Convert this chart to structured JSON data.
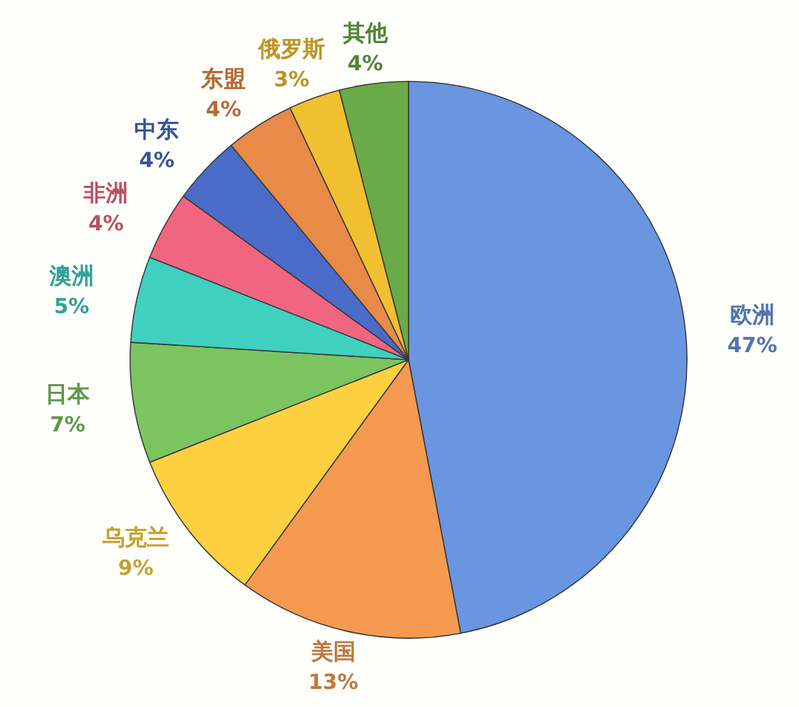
{
  "chart_data": {
    "type": "pie",
    "categories": [
      "欧洲",
      "美国",
      "乌克兰",
      "日本",
      "澳洲",
      "非洲",
      "中东",
      "东盟",
      "俄罗斯",
      "其他"
    ],
    "values": [
      47,
      13,
      9,
      7,
      5,
      4,
      4,
      4,
      3,
      4
    ],
    "value_labels": [
      "47%",
      "13%",
      "9%",
      "7%",
      "5%",
      "4%",
      "4%",
      "4%",
      "3%",
      "4%"
    ],
    "colors": [
      "#6a95e0",
      "#f59a50",
      "#fcd040",
      "#7cc460",
      "#40d0c0",
      "#f06680",
      "#4a6cc8",
      "#e88a48",
      "#f0c030",
      "#6aaa48"
    ]
  }
}
